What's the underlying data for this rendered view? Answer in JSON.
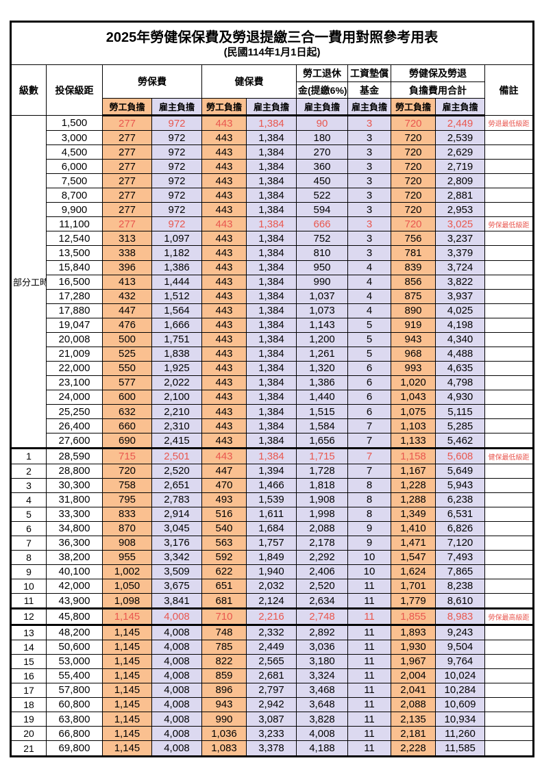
{
  "colors": {
    "employee_bg": "#FAC090",
    "employer_bg": "#DCD9F0",
    "highlight_text": "#E9574F",
    "border": "#000000"
  },
  "table": {
    "title": "2025年勞健保保費及勞退提繳三合一費用對照參考用表",
    "subtitle": "(民國114年1月1日起)",
    "header": {
      "level": "級數",
      "bracket": "投保級距",
      "labor_insurance": "勞保費",
      "health_insurance": "健保費",
      "pension_line1": "勞工退休",
      "pension_line2": "金(提繳6%)",
      "wage_fund_line1": "工資墊償",
      "wage_fund_line2": "基金",
      "total_line1": "勞健保及勞退",
      "total_line2": "負擔費用合計",
      "remark": "備註",
      "employee_share": "勞工負擔",
      "employer_share": "雇主負擔"
    },
    "group_label": "部分工時",
    "group_span": 23,
    "value_column_kinds": [
      "emp",
      "er",
      "emp",
      "er",
      "er",
      "er",
      "emp",
      "er"
    ],
    "value_column_names": [
      "labor-employee",
      "labor-employer",
      "health-employee",
      "health-employer",
      "pension-employer",
      "wagefund-employer",
      "total-employee",
      "total-employer"
    ],
    "rows": [
      {
        "level": "",
        "bracket": "1,500",
        "values": [
          "277",
          "972",
          "443",
          "1,384",
          "90",
          "3",
          "720",
          "2,449"
        ],
        "remark": "勞退最低級距",
        "highlight": true,
        "thick_top": false,
        "thick_bottom": false
      },
      {
        "level": "",
        "bracket": "3,000",
        "values": [
          "277",
          "972",
          "443",
          "1,384",
          "180",
          "3",
          "720",
          "2,539"
        ],
        "remark": "",
        "highlight": false,
        "thick_top": false,
        "thick_bottom": false
      },
      {
        "level": "",
        "bracket": "4,500",
        "values": [
          "277",
          "972",
          "443",
          "1,384",
          "270",
          "3",
          "720",
          "2,629"
        ],
        "remark": "",
        "highlight": false,
        "thick_top": false,
        "thick_bottom": false
      },
      {
        "level": "",
        "bracket": "6,000",
        "values": [
          "277",
          "972",
          "443",
          "1,384",
          "360",
          "3",
          "720",
          "2,719"
        ],
        "remark": "",
        "highlight": false,
        "thick_top": false,
        "thick_bottom": false
      },
      {
        "level": "",
        "bracket": "7,500",
        "values": [
          "277",
          "972",
          "443",
          "1,384",
          "450",
          "3",
          "720",
          "2,809"
        ],
        "remark": "",
        "highlight": false,
        "thick_top": false,
        "thick_bottom": false
      },
      {
        "level": "",
        "bracket": "8,700",
        "values": [
          "277",
          "972",
          "443",
          "1,384",
          "522",
          "3",
          "720",
          "2,881"
        ],
        "remark": "",
        "highlight": false,
        "thick_top": false,
        "thick_bottom": false
      },
      {
        "level": "",
        "bracket": "9,900",
        "values": [
          "277",
          "972",
          "443",
          "1,384",
          "594",
          "3",
          "720",
          "2,953"
        ],
        "remark": "",
        "highlight": false,
        "thick_top": false,
        "thick_bottom": false
      },
      {
        "level": "",
        "bracket": "11,100",
        "values": [
          "277",
          "972",
          "443",
          "1,384",
          "666",
          "3",
          "720",
          "3,025"
        ],
        "remark": "勞保最低級距",
        "highlight": true,
        "thick_top": false,
        "thick_bottom": false
      },
      {
        "level": "",
        "bracket": "12,540",
        "values": [
          "313",
          "1,097",
          "443",
          "1,384",
          "752",
          "3",
          "756",
          "3,237"
        ],
        "remark": "",
        "highlight": false,
        "thick_top": false,
        "thick_bottom": false
      },
      {
        "level": "",
        "bracket": "13,500",
        "values": [
          "338",
          "1,182",
          "443",
          "1,384",
          "810",
          "3",
          "781",
          "3,379"
        ],
        "remark": "",
        "highlight": false,
        "thick_top": false,
        "thick_bottom": false
      },
      {
        "level": "",
        "bracket": "15,840",
        "values": [
          "396",
          "1,386",
          "443",
          "1,384",
          "950",
          "4",
          "839",
          "3,724"
        ],
        "remark": "",
        "highlight": false,
        "thick_top": false,
        "thick_bottom": false
      },
      {
        "level": "",
        "bracket": "16,500",
        "values": [
          "413",
          "1,444",
          "443",
          "1,384",
          "990",
          "4",
          "856",
          "3,822"
        ],
        "remark": "",
        "highlight": false,
        "thick_top": false,
        "thick_bottom": false
      },
      {
        "level": "",
        "bracket": "17,280",
        "values": [
          "432",
          "1,512",
          "443",
          "1,384",
          "1,037",
          "4",
          "875",
          "3,937"
        ],
        "remark": "",
        "highlight": false,
        "thick_top": false,
        "thick_bottom": false
      },
      {
        "level": "",
        "bracket": "17,880",
        "values": [
          "447",
          "1,564",
          "443",
          "1,384",
          "1,073",
          "4",
          "890",
          "4,025"
        ],
        "remark": "",
        "highlight": false,
        "thick_top": false,
        "thick_bottom": false
      },
      {
        "level": "",
        "bracket": "19,047",
        "values": [
          "476",
          "1,666",
          "443",
          "1,384",
          "1,143",
          "5",
          "919",
          "4,198"
        ],
        "remark": "",
        "highlight": false,
        "thick_top": false,
        "thick_bottom": false
      },
      {
        "level": "",
        "bracket": "20,008",
        "values": [
          "500",
          "1,751",
          "443",
          "1,384",
          "1,200",
          "5",
          "943",
          "4,340"
        ],
        "remark": "",
        "highlight": false,
        "thick_top": false,
        "thick_bottom": false
      },
      {
        "level": "",
        "bracket": "21,009",
        "values": [
          "525",
          "1,838",
          "443",
          "1,384",
          "1,261",
          "5",
          "968",
          "4,488"
        ],
        "remark": "",
        "highlight": false,
        "thick_top": false,
        "thick_bottom": false
      },
      {
        "level": "",
        "bracket": "22,000",
        "values": [
          "550",
          "1,925",
          "443",
          "1,384",
          "1,320",
          "6",
          "993",
          "4,635"
        ],
        "remark": "",
        "highlight": false,
        "thick_top": false,
        "thick_bottom": false
      },
      {
        "level": "",
        "bracket": "23,100",
        "values": [
          "577",
          "2,022",
          "443",
          "1,384",
          "1,386",
          "6",
          "1,020",
          "4,798"
        ],
        "remark": "",
        "highlight": false,
        "thick_top": false,
        "thick_bottom": false
      },
      {
        "level": "",
        "bracket": "24,000",
        "values": [
          "600",
          "2,100",
          "443",
          "1,384",
          "1,440",
          "6",
          "1,043",
          "4,930"
        ],
        "remark": "",
        "highlight": false,
        "thick_top": false,
        "thick_bottom": false
      },
      {
        "level": "",
        "bracket": "25,250",
        "values": [
          "632",
          "2,210",
          "443",
          "1,384",
          "1,515",
          "6",
          "1,075",
          "5,115"
        ],
        "remark": "",
        "highlight": false,
        "thick_top": false,
        "thick_bottom": false
      },
      {
        "level": "",
        "bracket": "26,400",
        "values": [
          "660",
          "2,310",
          "443",
          "1,384",
          "1,584",
          "7",
          "1,103",
          "5,285"
        ],
        "remark": "",
        "highlight": false,
        "thick_top": false,
        "thick_bottom": false
      },
      {
        "level": "",
        "bracket": "27,600",
        "values": [
          "690",
          "2,415",
          "443",
          "1,384",
          "1,656",
          "7",
          "1,133",
          "5,462"
        ],
        "remark": "",
        "highlight": false,
        "thick_top": false,
        "thick_bottom": false
      },
      {
        "level": "1",
        "bracket": "28,590",
        "values": [
          "715",
          "2,501",
          "443",
          "1,384",
          "1,715",
          "7",
          "1,158",
          "5,608"
        ],
        "remark": "健保最低級距",
        "highlight": true,
        "thick_top": true,
        "thick_bottom": false
      },
      {
        "level": "2",
        "bracket": "28,800",
        "values": [
          "720",
          "2,520",
          "447",
          "1,394",
          "1,728",
          "7",
          "1,167",
          "5,649"
        ],
        "remark": "",
        "highlight": false,
        "thick_top": false,
        "thick_bottom": false
      },
      {
        "level": "3",
        "bracket": "30,300",
        "values": [
          "758",
          "2,651",
          "470",
          "1,466",
          "1,818",
          "8",
          "1,228",
          "5,943"
        ],
        "remark": "",
        "highlight": false,
        "thick_top": false,
        "thick_bottom": false
      },
      {
        "level": "4",
        "bracket": "31,800",
        "values": [
          "795",
          "2,783",
          "493",
          "1,539",
          "1,908",
          "8",
          "1,288",
          "6,238"
        ],
        "remark": "",
        "highlight": false,
        "thick_top": false,
        "thick_bottom": false
      },
      {
        "level": "5",
        "bracket": "33,300",
        "values": [
          "833",
          "2,914",
          "516",
          "1,611",
          "1,998",
          "8",
          "1,349",
          "6,531"
        ],
        "remark": "",
        "highlight": false,
        "thick_top": false,
        "thick_bottom": false
      },
      {
        "level": "6",
        "bracket": "34,800",
        "values": [
          "870",
          "3,045",
          "540",
          "1,684",
          "2,088",
          "9",
          "1,410",
          "6,826"
        ],
        "remark": "",
        "highlight": false,
        "thick_top": false,
        "thick_bottom": false
      },
      {
        "level": "7",
        "bracket": "36,300",
        "values": [
          "908",
          "3,176",
          "563",
          "1,757",
          "2,178",
          "9",
          "1,471",
          "7,120"
        ],
        "remark": "",
        "highlight": false,
        "thick_top": false,
        "thick_bottom": false
      },
      {
        "level": "8",
        "bracket": "38,200",
        "values": [
          "955",
          "3,342",
          "592",
          "1,849",
          "2,292",
          "10",
          "1,547",
          "7,493"
        ],
        "remark": "",
        "highlight": false,
        "thick_top": false,
        "thick_bottom": false
      },
      {
        "level": "9",
        "bracket": "40,100",
        "values": [
          "1,002",
          "3,509",
          "622",
          "1,940",
          "2,406",
          "10",
          "1,624",
          "7,865"
        ],
        "remark": "",
        "highlight": false,
        "thick_top": false,
        "thick_bottom": false
      },
      {
        "level": "10",
        "bracket": "42,000",
        "values": [
          "1,050",
          "3,675",
          "651",
          "2,032",
          "2,520",
          "11",
          "1,701",
          "8,238"
        ],
        "remark": "",
        "highlight": false,
        "thick_top": false,
        "thick_bottom": false
      },
      {
        "level": "11",
        "bracket": "43,900",
        "values": [
          "1,098",
          "3,841",
          "681",
          "2,124",
          "2,634",
          "11",
          "1,779",
          "8,610"
        ],
        "remark": "",
        "highlight": false,
        "thick_top": false,
        "thick_bottom": false
      },
      {
        "level": "12",
        "bracket": "45,800",
        "values": [
          "1,145",
          "4,008",
          "710",
          "2,216",
          "2,748",
          "11",
          "1,855",
          "8,983"
        ],
        "remark": "勞保最高級距",
        "highlight": true,
        "thick_top": true,
        "thick_bottom": true
      },
      {
        "level": "13",
        "bracket": "48,200",
        "values": [
          "1,145",
          "4,008",
          "748",
          "2,332",
          "2,892",
          "11",
          "1,893",
          "9,243"
        ],
        "remark": "",
        "highlight": false,
        "thick_top": false,
        "thick_bottom": false
      },
      {
        "level": "14",
        "bracket": "50,600",
        "values": [
          "1,145",
          "4,008",
          "785",
          "2,449",
          "3,036",
          "11",
          "1,930",
          "9,504"
        ],
        "remark": "",
        "highlight": false,
        "thick_top": false,
        "thick_bottom": false
      },
      {
        "level": "15",
        "bracket": "53,000",
        "values": [
          "1,145",
          "4,008",
          "822",
          "2,565",
          "3,180",
          "11",
          "1,967",
          "9,764"
        ],
        "remark": "",
        "highlight": false,
        "thick_top": false,
        "thick_bottom": false
      },
      {
        "level": "16",
        "bracket": "55,400",
        "values": [
          "1,145",
          "4,008",
          "859",
          "2,681",
          "3,324",
          "11",
          "2,004",
          "10,024"
        ],
        "remark": "",
        "highlight": false,
        "thick_top": false,
        "thick_bottom": false
      },
      {
        "level": "17",
        "bracket": "57,800",
        "values": [
          "1,145",
          "4,008",
          "896",
          "2,797",
          "3,468",
          "11",
          "2,041",
          "10,284"
        ],
        "remark": "",
        "highlight": false,
        "thick_top": false,
        "thick_bottom": false
      },
      {
        "level": "18",
        "bracket": "60,800",
        "values": [
          "1,145",
          "4,008",
          "943",
          "2,942",
          "3,648",
          "11",
          "2,088",
          "10,609"
        ],
        "remark": "",
        "highlight": false,
        "thick_top": false,
        "thick_bottom": false
      },
      {
        "level": "19",
        "bracket": "63,800",
        "values": [
          "1,145",
          "4,008",
          "990",
          "3,087",
          "3,828",
          "11",
          "2,135",
          "10,934"
        ],
        "remark": "",
        "highlight": false,
        "thick_top": false,
        "thick_bottom": false
      },
      {
        "level": "20",
        "bracket": "66,800",
        "values": [
          "1,145",
          "4,008",
          "1,036",
          "3,233",
          "4,008",
          "11",
          "2,181",
          "11,260"
        ],
        "remark": "",
        "highlight": false,
        "thick_top": false,
        "thick_bottom": false
      },
      {
        "level": "21",
        "bracket": "69,800",
        "values": [
          "1,145",
          "4,008",
          "1,083",
          "3,378",
          "4,188",
          "11",
          "2,228",
          "11,585"
        ],
        "remark": "",
        "highlight": false,
        "thick_top": false,
        "thick_bottom": false
      }
    ]
  }
}
